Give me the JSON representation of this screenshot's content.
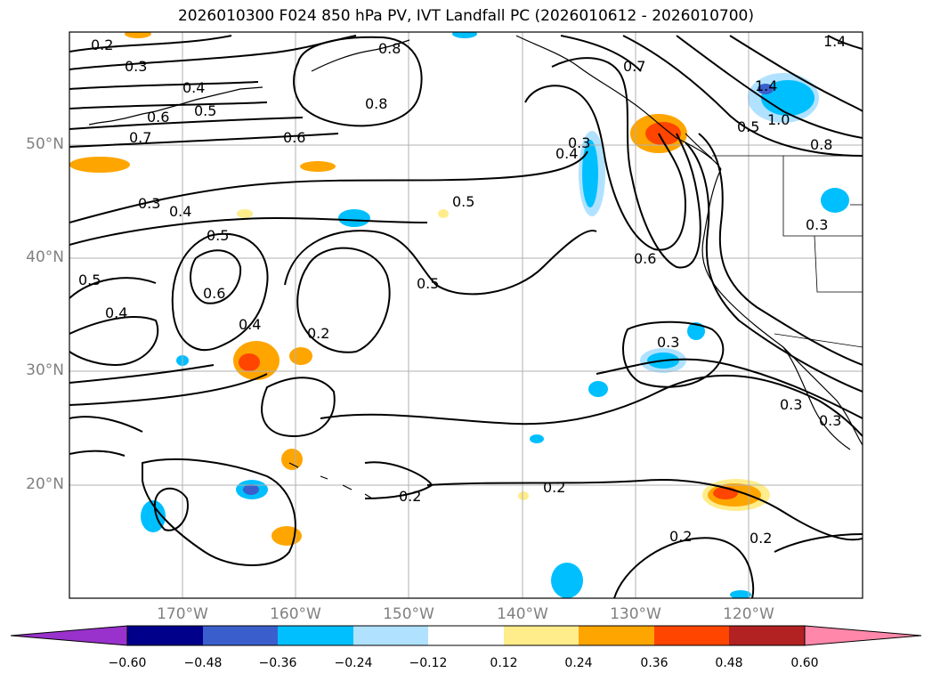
{
  "title": "2026010300 F024 850 hPa PV, IVT Landfall PC (2026010612 - 2026010700)",
  "axes": {
    "lat_labels": [
      "50°N",
      "40°N",
      "30°N",
      "20°N"
    ],
    "lon_labels": [
      "170°W",
      "160°W",
      "150°W",
      "140°W",
      "130°W",
      "120°W"
    ],
    "lat_range": [
      10,
      60
    ],
    "lon_range": [
      -180,
      -110
    ]
  },
  "colorbar": {
    "levels": [
      "−0.60",
      "−0.48",
      "−0.36",
      "−0.24",
      "−0.12",
      "0.12",
      "0.24",
      "0.36",
      "0.48",
      "0.60"
    ],
    "colors": [
      "#9932cc",
      "#00008b",
      "#3a5fcd",
      "#00bfff",
      "#b0e2ff",
      "#ffffff",
      "#ffec8b",
      "#ffa500",
      "#ff4500",
      "#b22222",
      "#ff88aa"
    ],
    "extend": "both"
  },
  "contour_labels": [
    "0.2",
    "0.3",
    "0.4",
    "0.5",
    "0.6",
    "0.7",
    "0.8",
    "1.0",
    "1.4"
  ],
  "colors": {
    "coast": "#000000",
    "contour": "#000000",
    "grid": "#b0b0b0",
    "axis_label": "#808080"
  }
}
